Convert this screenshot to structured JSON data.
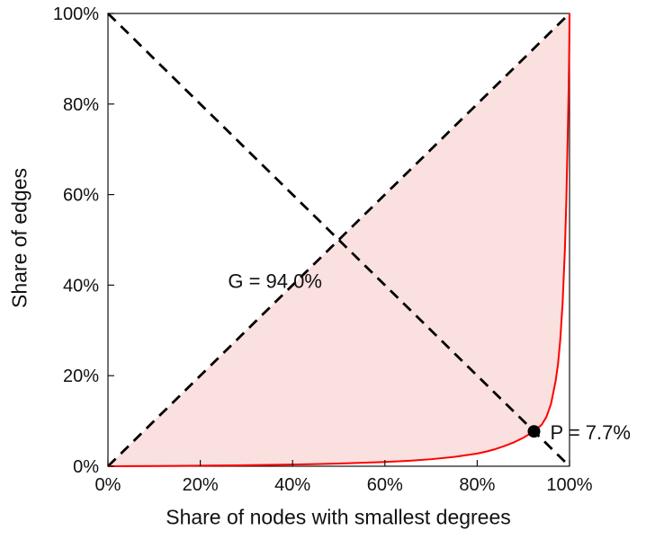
{
  "chart_data": {
    "type": "line",
    "xlabel": "Share of nodes with smallest degrees",
    "ylabel": "Share of edges",
    "xlim": [
      0,
      100
    ],
    "ylim": [
      0,
      100
    ],
    "x_ticks": [
      0,
      20,
      40,
      60,
      80,
      100
    ],
    "y_ticks": [
      0,
      20,
      40,
      60,
      80,
      100
    ],
    "tick_suffix": "%",
    "grid": false,
    "legend": false,
    "axis_color": "#111111",
    "series": [
      {
        "name": "lorenz-curve",
        "color": "#ff0000",
        "style": "solid",
        "width": 2,
        "points": [
          [
            0,
            0
          ],
          [
            5,
            0.02
          ],
          [
            10,
            0.05
          ],
          [
            15,
            0.08
          ],
          [
            20,
            0.12
          ],
          [
            25,
            0.17
          ],
          [
            30,
            0.22
          ],
          [
            35,
            0.3
          ],
          [
            40,
            0.38
          ],
          [
            45,
            0.48
          ],
          [
            50,
            0.6
          ],
          [
            55,
            0.76
          ],
          [
            60,
            0.95
          ],
          [
            65,
            1.2
          ],
          [
            70,
            1.55
          ],
          [
            75,
            2.05
          ],
          [
            80,
            2.8
          ],
          [
            82,
            3.25
          ],
          [
            84,
            3.8
          ],
          [
            86,
            4.5
          ],
          [
            88,
            5.3
          ],
          [
            90,
            6.3
          ],
          [
            92.3,
            7.7
          ],
          [
            94,
            9.2
          ],
          [
            95,
            10.9
          ],
          [
            96,
            13.8
          ],
          [
            97,
            18.9
          ],
          [
            97.5,
            22.5
          ],
          [
            98,
            28.0
          ],
          [
            98.5,
            36.0
          ],
          [
            99,
            48.0
          ],
          [
            99.3,
            58.5
          ],
          [
            99.6,
            72.5
          ],
          [
            99.8,
            83.0
          ],
          [
            99.9,
            89.5
          ],
          [
            99.95,
            93.5
          ],
          [
            100,
            100
          ]
        ]
      },
      {
        "name": "equality-diagonal",
        "color": "#000000",
        "style": "dashed",
        "width": 2.8,
        "points": [
          [
            0,
            0
          ],
          [
            100,
            100
          ]
        ]
      },
      {
        "name": "anti-diagonal",
        "color": "#000000",
        "style": "dashed",
        "width": 2.8,
        "points": [
          [
            0,
            100
          ],
          [
            100,
            0
          ]
        ]
      }
    ],
    "shaded_region": {
      "description": "area between equality diagonal and Lorenz curve",
      "fill": "#fbe0e0"
    },
    "point_marker": {
      "x": 92.3,
      "y": 7.7,
      "color": "#000000",
      "radius": 7
    },
    "annotations": [
      {
        "id": "gini-label",
        "text": "G = 94.0%",
        "x": 26,
        "y": 41,
        "anchor": "start"
      },
      {
        "id": "p-label",
        "text": "P = 7.7%",
        "x": 95.8,
        "y": 7.5,
        "anchor": "start"
      }
    ]
  }
}
